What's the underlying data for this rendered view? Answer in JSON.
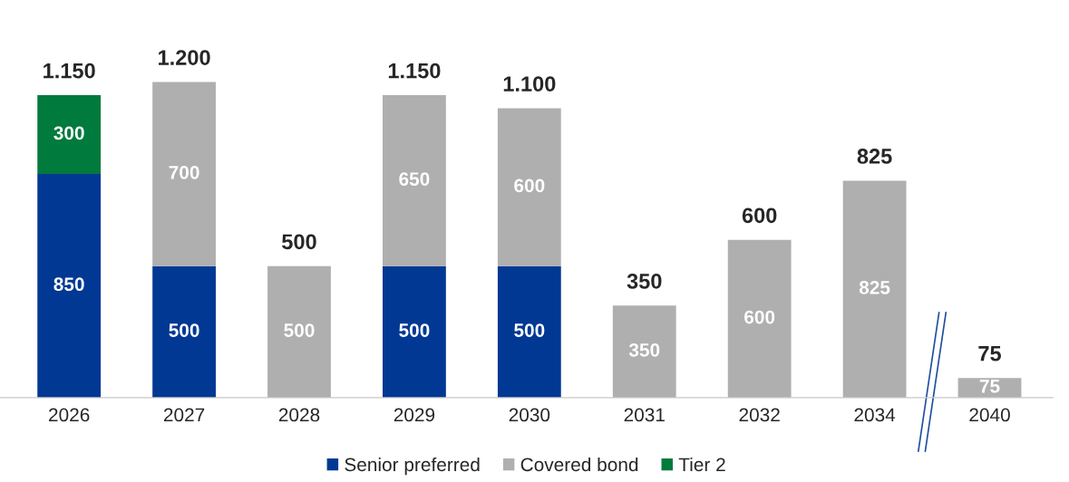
{
  "chart_data": {
    "type": "bar",
    "stacked": true,
    "categories": [
      "2026",
      "2027",
      "2028",
      "2029",
      "2030",
      "2031",
      "2032",
      "2034",
      "2040"
    ],
    "series": [
      {
        "name": "Senior preferred",
        "color": "#003893",
        "values": [
          850,
          500,
          null,
          500,
          500,
          null,
          null,
          null,
          null
        ]
      },
      {
        "name": "Covered bond",
        "color": "#afafaf",
        "values": [
          null,
          700,
          500,
          650,
          600,
          350,
          600,
          825,
          75
        ]
      },
      {
        "name": "Tier 2",
        "color": "#007a3d",
        "values": [
          300,
          null,
          null,
          null,
          null,
          null,
          null,
          null,
          null
        ]
      }
    ],
    "data_labels": true,
    "totals": [
      "1.150",
      "1.200",
      "500",
      "1.150",
      "1.100",
      "350",
      "600",
      "825",
      "75"
    ],
    "legend": "bottom",
    "grid": false,
    "tick_labels": "x"
  }
}
